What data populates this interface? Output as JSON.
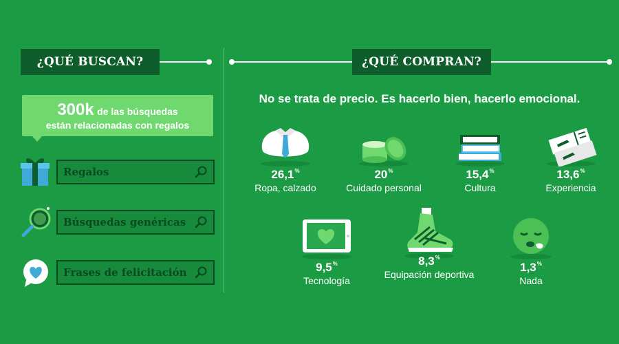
{
  "left": {
    "header": "¿QUÉ BUSCAN?",
    "callout": {
      "big": "300k",
      "line1_rest": "de las búsquedas",
      "line2": "están relacionadas con",
      "line2_bold": "regalos"
    },
    "searches": [
      {
        "label": "Regalos",
        "icon": "gift-icon"
      },
      {
        "label": "Búsquedas genéricas",
        "icon": "magnifier-globe-icon"
      },
      {
        "label": "Frases de felicitación",
        "icon": "speech-heart-icon"
      }
    ]
  },
  "right": {
    "header": "¿QUÉ COMPRAN?",
    "tagline": "No se trata de precio. Es hacerlo bien, hacerlo emocional.",
    "items": [
      {
        "value": "26,1",
        "unit": "%",
        "label": "Ropa, calzado",
        "icon": "shirt-icon"
      },
      {
        "value": "20",
        "unit": "%",
        "label": "Cuidado personal",
        "icon": "cream-jar-icon"
      },
      {
        "value": "15,4",
        "unit": "%",
        "label": "Cultura",
        "icon": "books-icon"
      },
      {
        "value": "13,6",
        "unit": "%",
        "label": "Experiencia",
        "icon": "plane-tickets-icon"
      },
      {
        "value": "9,5",
        "unit": "%",
        "label": "Tecnología",
        "icon": "tablet-heart-icon"
      },
      {
        "value": "8,3",
        "unit": "%",
        "label": "Equipación deportiva",
        "icon": "sneaker-icon"
      },
      {
        "value": "1,3",
        "unit": "%",
        "label": "Nada",
        "icon": "sleepy-face-icon"
      }
    ]
  },
  "colors": {
    "background": "#1c9b45",
    "header": "#0d5e2b",
    "callout": "#6fd86f",
    "search_border": "#0a4a22"
  }
}
